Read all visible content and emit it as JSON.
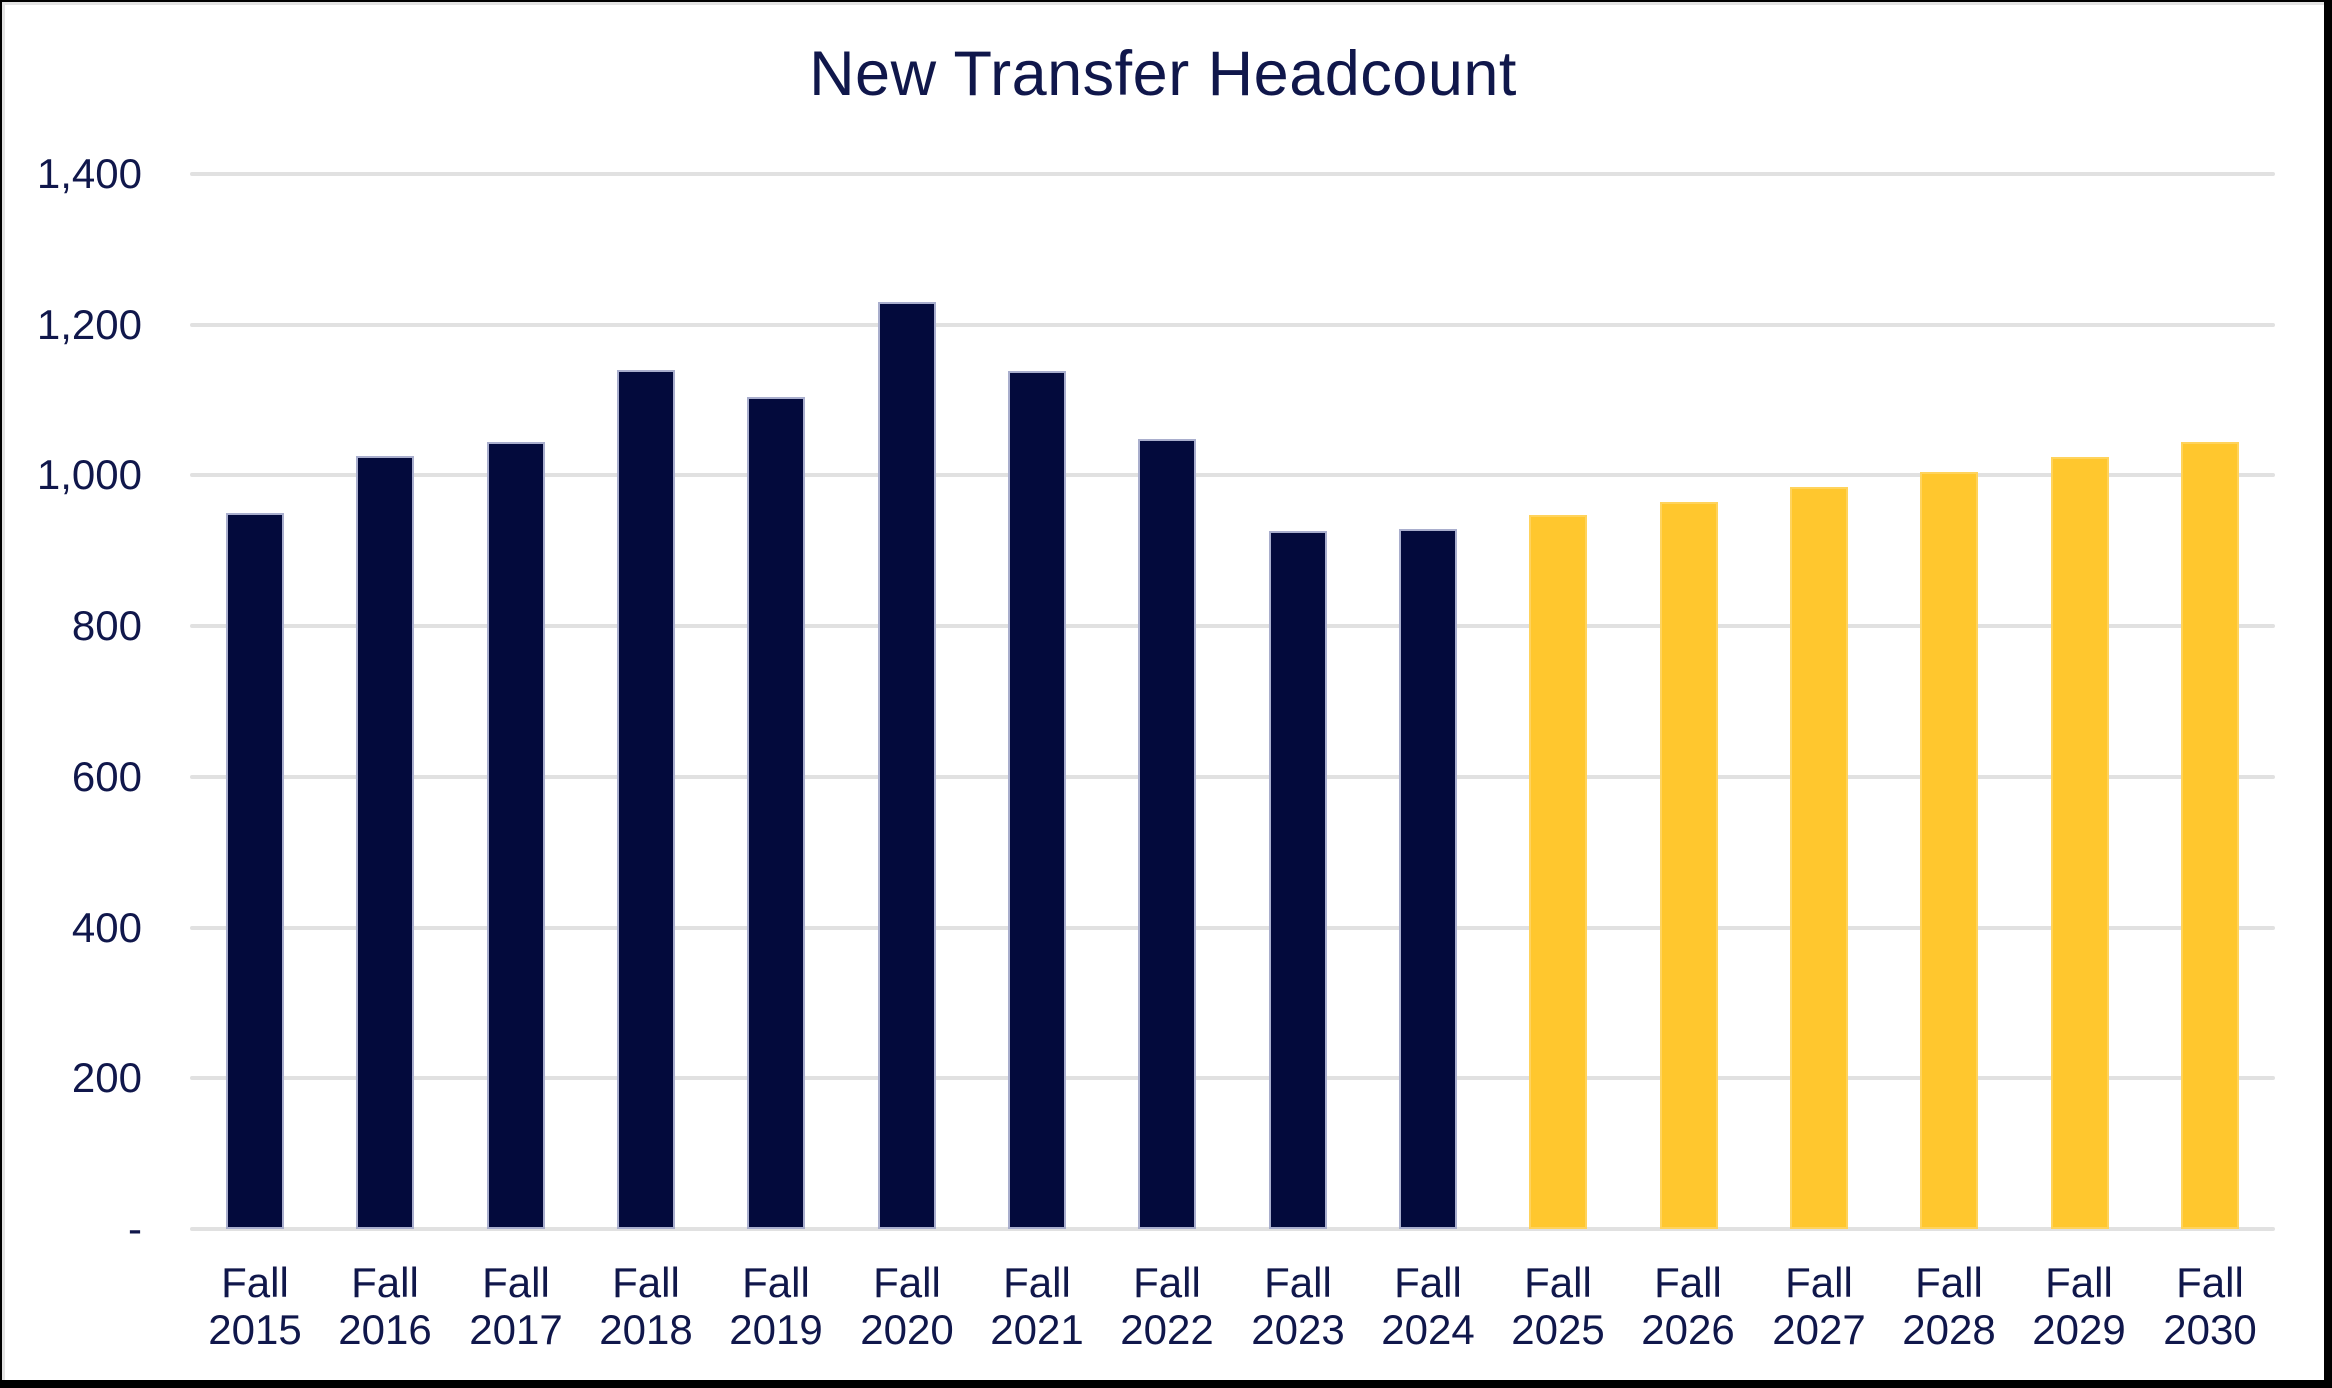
{
  "chart_data": {
    "type": "bar",
    "title": "New Transfer Headcount",
    "xlabel": "",
    "ylabel": "",
    "ylim": [
      0,
      1400
    ],
    "grid": true,
    "legend": "none",
    "y_ticks": [
      {
        "value": 0,
        "label": "-"
      },
      {
        "value": 200,
        "label": "200"
      },
      {
        "value": 400,
        "label": "400"
      },
      {
        "value": 600,
        "label": "600"
      },
      {
        "value": 800,
        "label": "800"
      },
      {
        "value": 1000,
        "label": "1,000"
      },
      {
        "value": 1200,
        "label": "1,200"
      },
      {
        "value": 1400,
        "label": "1,400"
      }
    ],
    "colors": {
      "actual": "#030a3c",
      "actual_border": "#a9aecd",
      "projected": "#ffc72e",
      "projected_border": "#ffd35c",
      "gridline": "#e1e1e1",
      "text": "#10174b"
    },
    "points": [
      {
        "label": "Fall 2015",
        "value": 950,
        "series": "actual"
      },
      {
        "label": "Fall 2016",
        "value": 1026,
        "series": "actual"
      },
      {
        "label": "Fall 2017",
        "value": 1045,
        "series": "actual"
      },
      {
        "label": "Fall 2018",
        "value": 1140,
        "series": "actual"
      },
      {
        "label": "Fall 2019",
        "value": 1104,
        "series": "actual"
      },
      {
        "label": "Fall 2020",
        "value": 1230,
        "series": "actual"
      },
      {
        "label": "Fall 2021",
        "value": 1138,
        "series": "actual"
      },
      {
        "label": "Fall 2022",
        "value": 1048,
        "series": "actual"
      },
      {
        "label": "Fall 2023",
        "value": 926,
        "series": "actual"
      },
      {
        "label": "Fall 2024",
        "value": 929,
        "series": "actual"
      },
      {
        "label": "Fall 2025",
        "value": 947,
        "series": "projected"
      },
      {
        "label": "Fall 2026",
        "value": 965,
        "series": "projected"
      },
      {
        "label": "Fall 2027",
        "value": 985,
        "series": "projected"
      },
      {
        "label": "Fall 2028",
        "value": 1004,
        "series": "projected"
      },
      {
        "label": "Fall 2029",
        "value": 1024,
        "series": "projected"
      },
      {
        "label": "Fall 2030",
        "value": 1045,
        "series": "projected"
      }
    ]
  }
}
